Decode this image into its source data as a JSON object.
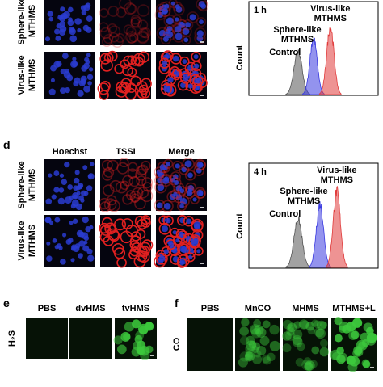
{
  "panel_c": {
    "rows": [
      [
        "Sphere-like",
        "MTHMS"
      ],
      [
        "Virus-like",
        "MTHMS"
      ]
    ],
    "histogram": {
      "time": "1 h",
      "y_label": "Count",
      "virus": [
        "Virus-like",
        "MTHMS"
      ],
      "sphere": [
        "Sphere-like",
        "MTHMS"
      ],
      "control": "Control"
    }
  },
  "panel_d": {
    "label": "d",
    "columns": [
      "Hoechst",
      "TSSI",
      "Merge"
    ],
    "rows": [
      [
        "Sphere-like",
        "MTHMS"
      ],
      [
        "Virus-like",
        "MTHMS"
      ]
    ],
    "histogram": {
      "time": "4 h",
      "y_label": "Count",
      "virus": [
        "Virus-like",
        "MTHMS"
      ],
      "sphere": [
        "Sphere-like",
        "MTHMS"
      ],
      "control": "Control"
    }
  },
  "panel_e": {
    "label": "e",
    "columns": [
      "PBS",
      "dvHMS",
      "tvHMS"
    ],
    "row": "H₂S"
  },
  "panel_f": {
    "label": "f",
    "columns": [
      "PBS",
      "MnCO",
      "MHMS",
      "MTHMS+L"
    ],
    "row": "CO"
  }
}
